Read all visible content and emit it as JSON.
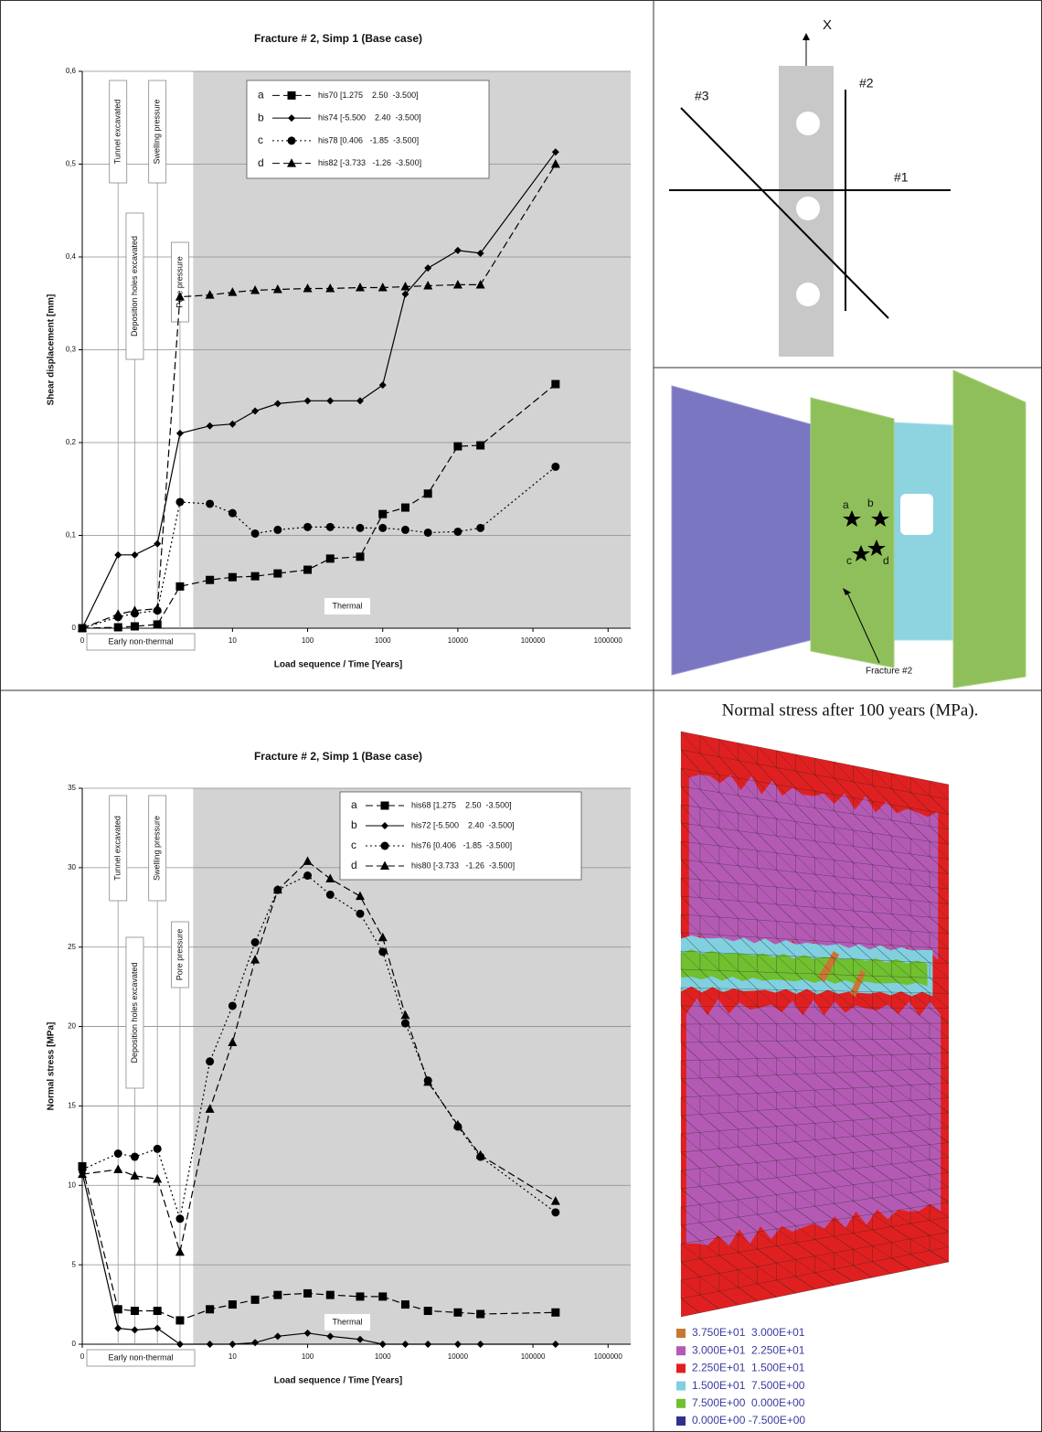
{
  "chart_data": [
    {
      "type": "line",
      "title": "Fracture # 2, Simp 1 (Base case)",
      "xlabel": "Load sequence / Time [Years]",
      "ylabel": "Shear displacement [mm]",
      "x": [
        0.1,
        0.3,
        0.5,
        1,
        2,
        5,
        10,
        20,
        40,
        100,
        200,
        500,
        1000,
        2000,
        4000,
        10000,
        20000,
        200000
      ],
      "xscale": "log",
      "xlim": [
        0.1,
        2000000
      ],
      "xticks": [
        {
          "value": 0.1,
          "label": "0"
        },
        10,
        100,
        1000,
        10000,
        100000,
        1000000
      ],
      "ylim": [
        0,
        0.6
      ],
      "yticks": [
        0,
        {
          "value": 0.1,
          "label": "0,1"
        },
        {
          "value": 0.2,
          "label": "0,2"
        },
        {
          "value": 0.3,
          "label": "0,3"
        },
        {
          "value": 0.4,
          "label": "0,4"
        },
        {
          "value": 0.5,
          "label": "0,5"
        },
        {
          "value": 0.6,
          "label": "0,6"
        }
      ],
      "grid": true,
      "shaded_from": 3,
      "shaded_label": "Thermal",
      "early_label": "Early non-thermal",
      "annotations": [
        "Tunnel excavated",
        "Deposition holes excavated",
        "Swelling pressure",
        "Pore pressure"
      ],
      "series": [
        {
          "name": "a",
          "description": "his70 [1.275    2.50  -3.500]",
          "color": "#000000",
          "marker": "square",
          "dash": "dashed",
          "values": [
            0,
            0.001,
            0.002,
            0.004,
            0.045,
            0.052,
            0.055,
            0.056,
            0.059,
            0.063,
            0.075,
            0.077,
            0.123,
            0.13,
            0.145,
            0.196,
            0.197,
            0.263
          ]
        },
        {
          "name": "b",
          "description": "his74 [-5.500    2.40  -3.500]",
          "color": "#000000",
          "marker": "diamond",
          "dash": "solid",
          "values": [
            0,
            0.079,
            0.079,
            0.091,
            0.21,
            0.218,
            0.22,
            0.234,
            0.242,
            0.245,
            0.245,
            0.245,
            0.262,
            0.36,
            0.388,
            0.407,
            0.404,
            0.513
          ]
        },
        {
          "name": "c",
          "description": "his78 [0.406   -1.85  -3.500]",
          "color": "#000000",
          "marker": "circle",
          "dash": "dotted",
          "values": [
            0,
            0.012,
            0.016,
            0.019,
            0.136,
            0.134,
            0.124,
            0.102,
            0.106,
            0.109,
            0.109,
            0.108,
            0.108,
            0.106,
            0.103,
            0.104,
            0.108,
            0.174
          ]
        },
        {
          "name": "d",
          "description": "his82 [-3.733   -1.26  -3.500]",
          "color": "#000000",
          "marker": "triangle",
          "dash": "dashed",
          "values": [
            0,
            0.015,
            0.019,
            0.021,
            0.357,
            0.359,
            0.362,
            0.364,
            0.365,
            0.366,
            0.366,
            0.367,
            0.367,
            0.368,
            0.369,
            0.37,
            0.37,
            0.5
          ]
        }
      ]
    },
    {
      "type": "line",
      "title": "Fracture # 2, Simp 1 (Base case)",
      "xlabel": "Load sequence / Time [Years]",
      "ylabel": "Normal stress [MPa]",
      "x": [
        0.1,
        0.3,
        0.5,
        1,
        2,
        5,
        10,
        20,
        40,
        100,
        200,
        500,
        1000,
        2000,
        4000,
        10000,
        20000,
        200000
      ],
      "xscale": "log",
      "xlim": [
        0.1,
        2000000
      ],
      "xticks": [
        {
          "value": 0.1,
          "label": "0"
        },
        10,
        100,
        1000,
        10000,
        100000,
        1000000
      ],
      "ylim": [
        0,
        35
      ],
      "yticks": [
        0,
        5,
        10,
        15,
        20,
        25,
        30,
        35
      ],
      "grid": true,
      "shaded_from": 3,
      "shaded_label": "Thermal",
      "early_label": "Early non-thermal",
      "annotations": [
        "Tunnel excavated",
        "Deposition holes excavated",
        "Swelling pressure",
        "Pore pressure"
      ],
      "series": [
        {
          "name": "a",
          "description": "his68 [1.275    2.50  -3.500]",
          "color": "#000000",
          "marker": "square",
          "dash": "dashed",
          "values": [
            11.2,
            2.2,
            2.1,
            2.1,
            1.5,
            2.2,
            2.5,
            2.8,
            3.1,
            3.2,
            3.1,
            3.0,
            3.0,
            2.5,
            2.1,
            2.0,
            1.9,
            2.0
          ]
        },
        {
          "name": "b",
          "description": "his72 [-5.500    2.40  -3.500]",
          "color": "#000000",
          "marker": "diamond",
          "dash": "solid",
          "values": [
            10.8,
            1.0,
            0.9,
            1.0,
            0,
            0,
            0,
            0.1,
            0.5,
            0.7,
            0.5,
            0.3,
            0,
            0,
            0,
            0,
            0,
            0
          ]
        },
        {
          "name": "c",
          "description": "his76 [0.406   -1.85  -3.500]",
          "color": "#000000",
          "marker": "circle",
          "dash": "dotted",
          "values": [
            11.0,
            12.0,
            11.8,
            12.3,
            7.9,
            17.8,
            21.3,
            25.3,
            28.6,
            29.5,
            28.3,
            27.1,
            24.7,
            20.2,
            16.6,
            13.7,
            11.8,
            8.3
          ]
        },
        {
          "name": "d",
          "description": "his80 [-3.733   -1.26  -3.500]",
          "color": "#000000",
          "marker": "triangle",
          "dash": "dashed",
          "values": [
            10.7,
            11.0,
            10.6,
            10.4,
            5.8,
            14.8,
            19.0,
            24.2,
            28.6,
            30.4,
            29.3,
            28.2,
            25.6,
            20.7,
            16.5,
            13.8,
            11.9,
            9.0
          ]
        }
      ]
    }
  ],
  "schematic": {
    "axis_label": "X",
    "fractures": [
      "#1",
      "#2",
      "#3"
    ]
  },
  "fracture_view": {
    "points": [
      "a",
      "b",
      "c",
      "d"
    ],
    "label": "Fracture #2"
  },
  "contour_plot": {
    "title": "Normal stress after 100 years (MPa).",
    "legend": [
      {
        "label": "3.750E+01  3.000E+01",
        "color": "#c87832"
      },
      {
        "label": "3.000E+01  2.250E+01",
        "color": "#b45ab4"
      },
      {
        "label": "2.250E+01  1.500E+01",
        "color": "#e02020"
      },
      {
        "label": "1.500E+01  7.500E+00",
        "color": "#80d0e0"
      },
      {
        "label": "7.500E+00  0.000E+00",
        "color": "#70c030"
      },
      {
        "label": "0.000E+00 -7.500E+00",
        "color": "#303090"
      }
    ]
  }
}
